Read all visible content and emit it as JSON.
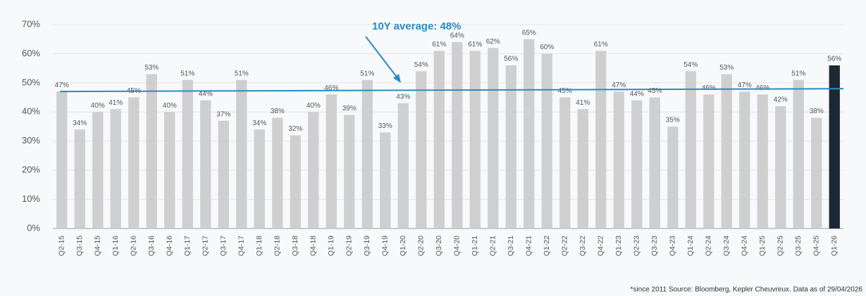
{
  "chart_data": {
    "type": "bar",
    "categories": [
      "Q2-15",
      "Q3-15",
      "Q4-15",
      "Q1-16",
      "Q2-16",
      "Q3-16",
      "Q4-16",
      "Q1-17",
      "Q2-17",
      "Q3-17",
      "Q4-17",
      "Q1-18",
      "Q2-18",
      "Q3-18",
      "Q4-18",
      "Q1-19",
      "Q2-19",
      "Q3-19",
      "Q4-19",
      "Q1-20",
      "Q2-20",
      "Q3-20",
      "Q4-20",
      "Q1-21",
      "Q2-21",
      "Q3-21",
      "Q4-21",
      "Q1-22",
      "Q2-22",
      "Q3-22",
      "Q4-22",
      "Q1-23",
      "Q2-23",
      "Q3-23",
      "Q4-23",
      "Q1-24",
      "Q2-24",
      "Q3-24",
      "Q4-24",
      "Q1-25",
      "Q2-25",
      "Q3-25",
      "Q4-25",
      "Q1-26"
    ],
    "values": [
      47,
      34,
      40,
      41,
      45,
      53,
      40,
      51,
      44,
      37,
      51,
      34,
      38,
      32,
      40,
      46,
      39,
      51,
      33,
      43,
      54,
      61,
      64,
      61,
      62,
      56,
      65,
      60,
      45,
      41,
      61,
      47,
      44,
      45,
      35,
      54,
      46,
      53,
      47,
      46,
      42,
      51,
      38,
      56
    ],
    "value_labels": [
      "47%",
      "34%",
      "40%",
      "41%",
      "45%",
      "53%",
      "40%",
      "51%",
      "44%",
      "37%",
      "51%",
      "34%",
      "38%",
      "32%",
      "40%",
      "46%",
      "39%",
      "51%",
      "33%",
      "43%",
      "54%",
      "61%",
      "64%",
      "61%",
      "62%",
      "56%",
      "65%",
      "60%",
      "45%",
      "41%",
      "61%",
      "47%",
      "44%",
      "45%",
      "35%",
      "54%",
      "46%",
      "53%",
      "47%",
      "46%",
      "42%",
      "51%",
      "38%",
      "56%"
    ],
    "colors": [
      "#cfcfcf",
      "#cfcfcf",
      "#cfcfcf",
      "#cfcfcf",
      "#cfcfcf",
      "#cfcfcf",
      "#cfcfcf",
      "#cfcfcf",
      "#cfcfcf",
      "#cfcfcf",
      "#cfcfcf",
      "#cfcfcf",
      "#cfcfcf",
      "#cfcfcf",
      "#cfcfcf",
      "#cfcfcf",
      "#cfcfcf",
      "#cfcfcf",
      "#cfcfcf",
      "#cfcfcf",
      "#cfcfcf",
      "#cfcfcf",
      "#cfcfcf",
      "#cfcfcf",
      "#cfcfcf",
      "#cfcfcf",
      "#cfcfcf",
      "#cfcfcf",
      "#cfcfcf",
      "#cfcfcf",
      "#cfcfcf",
      "#cfcfcf",
      "#cfcfcf",
      "#cfcfcf",
      "#cfcfcf",
      "#cfcfcf",
      "#cfcfcf",
      "#cfcfcf",
      "#cfcfcf",
      "#cfcfcf",
      "#cfcfcf",
      "#cfcfcf",
      "#cfcfcf",
      "#1c2833"
    ],
    "ylim": [
      0,
      70
    ],
    "yticks": [
      {
        "value": 0,
        "label": "0%"
      },
      {
        "value": 10,
        "label": "10%"
      },
      {
        "value": 20,
        "label": "20%"
      },
      {
        "value": 30,
        "label": "30%"
      },
      {
        "value": 40,
        "label": "40%"
      },
      {
        "value": 50,
        "label": "50%"
      },
      {
        "value": 60,
        "label": "60%"
      },
      {
        "value": 70,
        "label": "70%"
      }
    ],
    "grid": true,
    "average": {
      "value": 48,
      "label": "10Y average: 48%",
      "color": "#2b8bc3"
    },
    "footnote": "*since 2011 Source: Bloomberg, Kepler Cheuvreux. Data as of 29/04/2026"
  }
}
